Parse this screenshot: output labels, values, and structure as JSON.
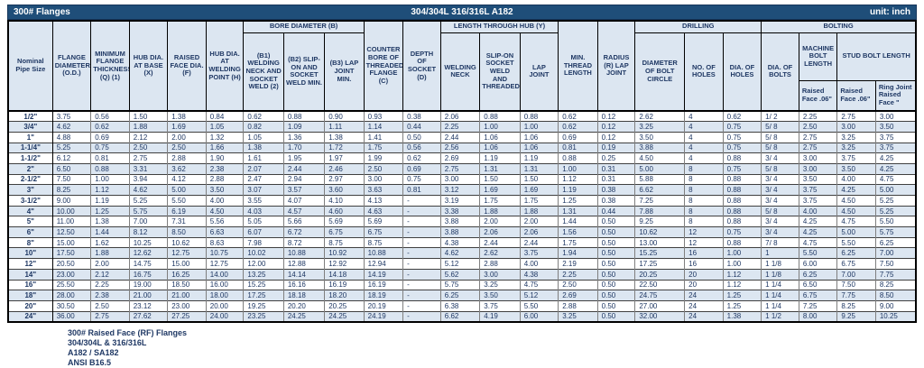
{
  "colors": {
    "title_bar_bg": "#1f4e79",
    "header_bg": "#dce6f1",
    "row_alt_bg": "#dce6f1",
    "text": "#1f3864"
  },
  "title_bar": {
    "left": "300# Flanges",
    "center": "304/304L 316/316L A182",
    "right": "unit: inch"
  },
  "table": {
    "group_headers": {
      "bore": "BORE DIAMETER (B)",
      "hub": "LENGTH THROUGH HUB (Y)",
      "drilling": "DRILLING",
      "bolting": "BOLTING"
    },
    "columns": {
      "nominal": "Nominal Pipe Size",
      "od": "FLANGE DIAMETER (O.D.)",
      "thickness": "MINIMUM FLANGE THICKNESS (Q) (1)",
      "hub_base": "HUB DIA. AT BASE (X)",
      "raised_face": "RAISED FACE DIA. (F)",
      "hub_weld": "HUB DIA. AT WELDING POINT (H)",
      "b1": "(B1) WELDING NECK AND SOCKET WELD (2)",
      "b2": "(B2) SLIP-ON AND SOCKET WELD MIN.",
      "b3": "(B3) LAP JOINT MIN.",
      "counter_bore": "COUNTER BORE OF THREADED FLANGE (C)",
      "socket_depth": "DEPTH OF SOCKET (D)",
      "welding_neck": "WELDING NECK",
      "slip_on": "SLIP-ON SOCKET WELD AND THREADED",
      "lap_joint": "LAP JOINT",
      "min_thread": "MIN. THREAD LENGTH",
      "radius": "RADIUS (R) LAP JOINT",
      "bolt_circle": "DIAMETER OF BOLT CIRCLE",
      "num_holes": "NO. OF HOLES",
      "dia_holes": "DIA. OF HOLES",
      "dia_bolts": "DIA. OF BOLTS",
      "machine_bolt": "MACHINE BOLT LENGTH",
      "stud_bolt": "STUD BOLT LENGTH",
      "machine_sub": "Raised Face .06\"",
      "stud_sub": "Raised Face .06\"",
      "ring_sub": "Ring Joint Raised Face \""
    },
    "rows": [
      [
        "1/2\"",
        "3.75",
        "0.56",
        "1.50",
        "1.38",
        "0.84",
        "0.62",
        "0.88",
        "0.90",
        "0.93",
        "0.38",
        "2.06",
        "0.88",
        "0.88",
        "0.62",
        "0.12",
        "2.62",
        "4",
        "0.62",
        "1/ 2",
        "2.25",
        "2.75",
        "3.00"
      ],
      [
        "3/4\"",
        "4.62",
        "0.62",
        "1.88",
        "1.69",
        "1.05",
        "0.82",
        "1.09",
        "1.11",
        "1.14",
        "0.44",
        "2.25",
        "1.00",
        "1.00",
        "0.62",
        "0.12",
        "3.25",
        "4",
        "0.75",
        "5/ 8",
        "2.50",
        "3.00",
        "3.50"
      ],
      [
        "1\"",
        "4.88",
        "0.69",
        "2.12",
        "2.00",
        "1.32",
        "1.05",
        "1.36",
        "1.38",
        "1.41",
        "0.50",
        "2.44",
        "1.06",
        "1.06",
        "0.69",
        "0.12",
        "3.50",
        "4",
        "0.75",
        "5/ 8",
        "2.75",
        "3.25",
        "3.75"
      ],
      [
        "1-1/4\"",
        "5.25",
        "0.75",
        "2.50",
        "2.50",
        "1.66",
        "1.38",
        "1.70",
        "1.72",
        "1.75",
        "0.56",
        "2.56",
        "1.06",
        "1.06",
        "0.81",
        "0.19",
        "3.88",
        "4",
        "0.75",
        "5/ 8",
        "2.75",
        "3.25",
        "3.75"
      ],
      [
        "1-1/2\"",
        "6.12",
        "0.81",
        "2.75",
        "2.88",
        "1.90",
        "1.61",
        "1.95",
        "1.97",
        "1.99",
        "0.62",
        "2.69",
        "1.19",
        "1.19",
        "0.88",
        "0.25",
        "4.50",
        "4",
        "0.88",
        "3/ 4",
        "3.00",
        "3.75",
        "4.25"
      ],
      [
        "2\"",
        "6.50",
        "0.88",
        "3.31",
        "3.62",
        "2.38",
        "2.07",
        "2.44",
        "2.46",
        "2.50",
        "0.69",
        "2.75",
        "1.31",
        "1.31",
        "1.00",
        "0.31",
        "5.00",
        "8",
        "0.75",
        "5/ 8",
        "3.00",
        "3.50",
        "4.25"
      ],
      [
        "2-1/2\"",
        "7.50",
        "1.00",
        "3.94",
        "4.12",
        "2.88",
        "2.47",
        "2.94",
        "2.97",
        "3.00",
        "0.75",
        "3.00",
        "1.50",
        "1.50",
        "1.12",
        "0.31",
        "5.88",
        "8",
        "0.88",
        "3/ 4",
        "3.50",
        "4.00",
        "4.75"
      ],
      [
        "3\"",
        "8.25",
        "1.12",
        "4.62",
        "5.00",
        "3.50",
        "3.07",
        "3.57",
        "3.60",
        "3.63",
        "0.81",
        "3.12",
        "1.69",
        "1.69",
        "1.19",
        "0.38",
        "6.62",
        "8",
        "0.88",
        "3/ 4",
        "3.75",
        "4.25",
        "5.00"
      ],
      [
        "3-1/2\"",
        "9.00",
        "1.19",
        "5.25",
        "5.50",
        "4.00",
        "3.55",
        "4.07",
        "4.10",
        "4.13",
        "-",
        "3.19",
        "1.75",
        "1.75",
        "1.25",
        "0.38",
        "7.25",
        "8",
        "0.88",
        "3/ 4",
        "3.75",
        "4.50",
        "5.25"
      ],
      [
        "4\"",
        "10.00",
        "1.25",
        "5.75",
        "6.19",
        "4.50",
        "4.03",
        "4.57",
        "4.60",
        "4.63",
        "-",
        "3.38",
        "1.88",
        "1.88",
        "1.31",
        "0.44",
        "7.88",
        "8",
        "0.88",
        "5/ 8",
        "4.00",
        "4.50",
        "5.25"
      ],
      [
        "5\"",
        "11.00",
        "1.38",
        "7.00",
        "7.31",
        "5.56",
        "5.05",
        "5.66",
        "5.69",
        "5.69",
        "-",
        "3.88",
        "2.00",
        "2.00",
        "1.44",
        "0.50",
        "9.25",
        "8",
        "0.88",
        "3/ 4",
        "4.25",
        "4.75",
        "5.50"
      ],
      [
        "6\"",
        "12.50",
        "1.44",
        "8.12",
        "8.50",
        "6.63",
        "6.07",
        "6.72",
        "6.75",
        "6.75",
        "-",
        "3.88",
        "2.06",
        "2.06",
        "1.56",
        "0.50",
        "10.62",
        "12",
        "0.75",
        "3/ 4",
        "4.25",
        "5.00",
        "5.75"
      ],
      [
        "8\"",
        "15.00",
        "1.62",
        "10.25",
        "10.62",
        "8.63",
        "7.98",
        "8.72",
        "8.75",
        "8.75",
        "-",
        "4.38",
        "2.44",
        "2.44",
        "1.75",
        "0.50",
        "13.00",
        "12",
        "0.88",
        "7/ 8",
        "4.75",
        "5.50",
        "6.25"
      ],
      [
        "10\"",
        "17.50",
        "1.88",
        "12.62",
        "12.75",
        "10.75",
        "10.02",
        "10.88",
        "10.92",
        "10.88",
        "-",
        "4.62",
        "2.62",
        "3.75",
        "1.94",
        "0.50",
        "15.25",
        "16",
        "1.00",
        "1",
        "5.50",
        "6.25",
        "7.00"
      ],
      [
        "12\"",
        "20.50",
        "2.00",
        "14.75",
        "15.00",
        "12.75",
        "12.00",
        "12.88",
        "12.92",
        "12.94",
        "-",
        "5.12",
        "2.88",
        "4.00",
        "2.19",
        "0.50",
        "17.25",
        "16",
        "1.00",
        "1 1/8",
        "6.00",
        "6.75",
        "7.50"
      ],
      [
        "14\"",
        "23.00",
        "2.12",
        "16.75",
        "16.25",
        "14.00",
        "13.25",
        "14.14",
        "14.18",
        "14.19",
        "-",
        "5.62",
        "3.00",
        "4.38",
        "2.25",
        "0.50",
        "20.25",
        "20",
        "1.12",
        "1 1/8",
        "6.25",
        "7.00",
        "7.75"
      ],
      [
        "16\"",
        "25.50",
        "2.25",
        "19.00",
        "18.50",
        "16.00",
        "15.25",
        "16.16",
        "16.19",
        "16.19",
        "-",
        "5.75",
        "3.25",
        "4.75",
        "2.50",
        "0.50",
        "22.50",
        "20",
        "1.12",
        "1 1/4",
        "6.50",
        "7.50",
        "8.25"
      ],
      [
        "18\"",
        "28.00",
        "2.38",
        "21.00",
        "21.00",
        "18.00",
        "17.25",
        "18.18",
        "18.20",
        "18.19",
        "-",
        "6.25",
        "3.50",
        "5.12",
        "2.69",
        "0.50",
        "24.75",
        "24",
        "1.25",
        "1 1/4",
        "6.75",
        "7.75",
        "8.50"
      ],
      [
        "20\"",
        "30.50",
        "2.50",
        "23.12",
        "23.00",
        "20.00",
        "19.25",
        "20.20",
        "20.25",
        "20.19",
        "-",
        "6.38",
        "3.75",
        "5.50",
        "2.88",
        "0.50",
        "27.00",
        "24",
        "1.25",
        "1 1/4",
        "7.25",
        "8.25",
        "9.00"
      ],
      [
        "24\"",
        "36.00",
        "2.75",
        "27.62",
        "27.25",
        "24.00",
        "23.25",
        "24.25",
        "24.25",
        "24.19",
        "-",
        "6.62",
        "4.19",
        "6.00",
        "3.25",
        "0.50",
        "32.00",
        "24",
        "1.38",
        "1 1/2",
        "8.00",
        "9.25",
        "10.25"
      ]
    ]
  },
  "notes": [
    "300# Raised Face (RF) Flanges",
    "304/304L & 316/316L",
    "A182 / SA182",
    "ANSI B16.5"
  ]
}
